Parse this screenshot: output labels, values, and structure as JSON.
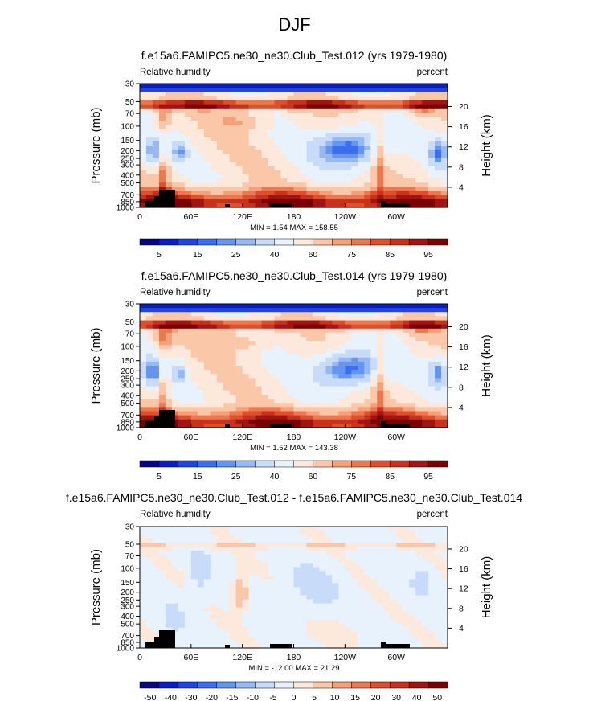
{
  "page_title": "DJF",
  "colors": {
    "rh_levels": [
      "#060680",
      "#0a1ec8",
      "#1e46e0",
      "#3c6ef0",
      "#6496f0",
      "#96b9f5",
      "#c8dcfa",
      "#e8f2fd",
      "#fde8dc",
      "#fac8a8",
      "#f5a078",
      "#ec7850",
      "#dc502c",
      "#c8321c",
      "#a01414",
      "#7a0000"
    ],
    "diff_levels": [
      "#060680",
      "#0a1ec8",
      "#1e46e0",
      "#3c6ef0",
      "#6496f0",
      "#96b9f5",
      "#c8dcfa",
      "#e8f2fd",
      "#fde8dc",
      "#fac8a8",
      "#f5a078",
      "#ec7850",
      "#dc502c",
      "#c8321c",
      "#a01414",
      "#7a0000"
    ]
  },
  "chart_data": [
    {
      "type": "heatmap",
      "title": "f.e15a6.FAMIPC5.ne30_ne30.Club_Test.012 (yrs 1979-1980)",
      "left_label": "Relative humidity",
      "right_label": "percent",
      "ylabel": "Pressure (mb)",
      "ylabel_right": "Height (km)",
      "x_ticks": [
        "0",
        "60E",
        "120E",
        "180",
        "120W",
        "60W"
      ],
      "y_ticks": [
        "1000",
        "850",
        "700",
        "500",
        "400",
        "300",
        "250",
        "200",
        "150",
        "100",
        "70",
        "50",
        "30"
      ],
      "y2_ticks": [
        "4",
        "8",
        "12",
        "16",
        "20"
      ],
      "ylim": [
        1000,
        30
      ],
      "xlim": [
        0,
        360
      ],
      "stats": "MIN =   1.54  MAX = 158.55",
      "colorbar_labels": [
        "5",
        "15",
        "25",
        "40",
        "60",
        "75",
        "85",
        "95"
      ]
    },
    {
      "type": "heatmap",
      "title": "f.e15a6.FAMIPC5.ne30_ne30.Club_Test.014 (yrs 1979-1980)",
      "left_label": "Relative humidity",
      "right_label": "percent",
      "ylabel": "Pressure (mb)",
      "ylabel_right": "Height (km)",
      "x_ticks": [
        "0",
        "60E",
        "120E",
        "180",
        "120W",
        "60W"
      ],
      "y_ticks": [
        "1000",
        "850",
        "700",
        "500",
        "400",
        "300",
        "250",
        "200",
        "150",
        "100",
        "70",
        "50",
        "30"
      ],
      "y2_ticks": [
        "4",
        "8",
        "12",
        "16",
        "20"
      ],
      "ylim": [
        1000,
        30
      ],
      "xlim": [
        0,
        360
      ],
      "stats": "MIN =   1.52  MAX = 143.38",
      "colorbar_labels": [
        "5",
        "15",
        "25",
        "40",
        "60",
        "75",
        "85",
        "95"
      ]
    },
    {
      "type": "heatmap",
      "title": "f.e15a6.FAMIPC5.ne30_ne30.Club_Test.012 - f.e15a6.FAMIPC5.ne30_ne30.Club_Test.014",
      "left_label": "Relative humidity",
      "right_label": "percent",
      "ylabel": "Pressure (mb)",
      "ylabel_right": "Height (km)",
      "x_ticks": [
        "0",
        "60E",
        "120E",
        "180",
        "120W",
        "60W"
      ],
      "y_ticks": [
        "1000",
        "850",
        "700",
        "500",
        "400",
        "300",
        "250",
        "200",
        "150",
        "100",
        "70",
        "50",
        "30"
      ],
      "y2_ticks": [
        "4",
        "8",
        "12",
        "16",
        "20"
      ],
      "ylim": [
        1000,
        30
      ],
      "xlim": [
        0,
        360
      ],
      "stats": "MIN = -12.00  MAX =  21.29",
      "colorbar_labels": [
        "-50",
        "-40",
        "-30",
        "-20",
        "-15",
        "-10",
        "-5",
        "0",
        "5",
        "10",
        "15",
        "20",
        "30",
        "40",
        "50"
      ]
    }
  ]
}
